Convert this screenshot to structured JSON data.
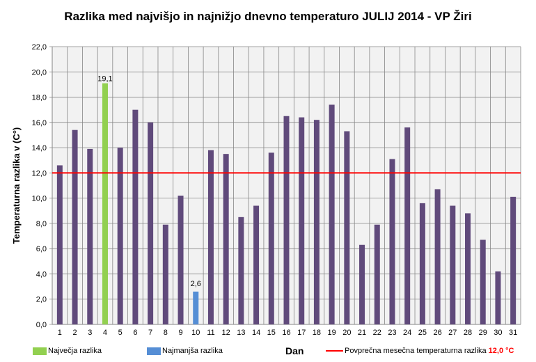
{
  "chart_data": {
    "type": "bar",
    "title": "Razlika med najvišjo in najnižjo dnevno temperaturo JULIJ 2014 - VP Žiri",
    "xlabel": "Dan",
    "ylabel": "Temperaturna razlika v (C°)",
    "ylim": [
      0,
      22
    ],
    "yticks": [
      "0,0",
      "2,0",
      "4,0",
      "6,0",
      "8,0",
      "10,0",
      "12,0",
      "14,0",
      "16,0",
      "18,0",
      "20,0",
      "22,0"
    ],
    "categories": [
      "1",
      "2",
      "3",
      "4",
      "5",
      "6",
      "7",
      "8",
      "9",
      "10",
      "11",
      "12",
      "13",
      "14",
      "15",
      "16",
      "17",
      "18",
      "19",
      "20",
      "21",
      "22",
      "23",
      "24",
      "25",
      "26",
      "27",
      "28",
      "29",
      "30",
      "31"
    ],
    "values": [
      12.6,
      15.4,
      13.9,
      19.1,
      14.0,
      17.0,
      16.0,
      7.9,
      10.2,
      2.6,
      13.8,
      13.5,
      8.5,
      9.4,
      13.6,
      16.5,
      16.4,
      16.2,
      17.4,
      15.3,
      6.3,
      7.9,
      13.1,
      15.6,
      9.6,
      10.7,
      9.4,
      8.8,
      6.7,
      4.2,
      10.1
    ],
    "max_index": 3,
    "min_index": 9,
    "data_labels": {
      "max": "19,1",
      "min": "2,6"
    },
    "average": 12.0,
    "grid": true,
    "legend": {
      "max": "Največja razlika",
      "min": "Najmanjša razlika",
      "avg": "Povprečna mesečna temperaturna razlika",
      "avg_value": "12,0 °C"
    },
    "colors": {
      "normal": "#604a7b",
      "max": "#92d050",
      "min": "#558ed5",
      "avg": "#ff0000",
      "plot_bg": "#f2f2f2",
      "grid": "#868686"
    }
  }
}
